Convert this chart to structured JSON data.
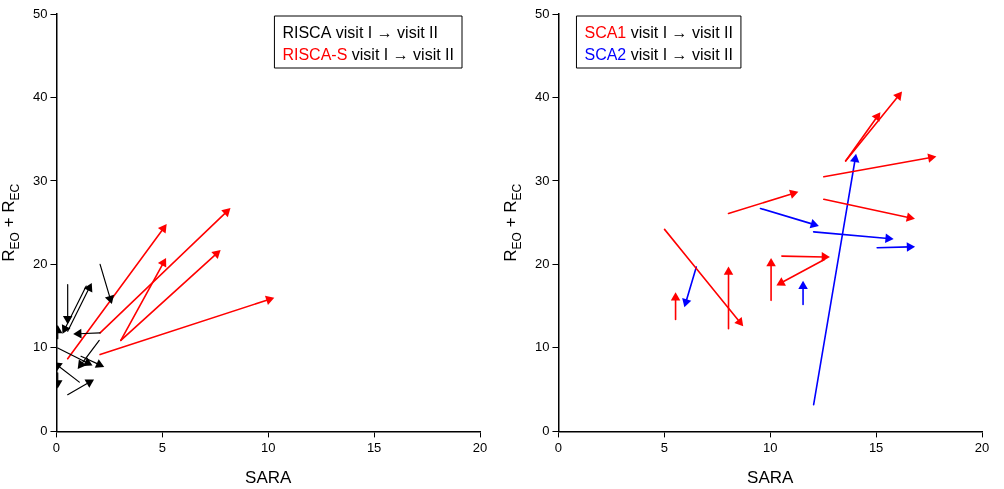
{
  "chart_data": [
    {
      "type": "line",
      "xlabel": "SARA",
      "ylabel": "R$_{EO}$ + R$_{EC}$",
      "xlim": [
        0,
        20
      ],
      "xticks": [
        0,
        5,
        10,
        15,
        20
      ],
      "ylim": [
        0,
        50
      ],
      "yticks": [
        0,
        10,
        20,
        30,
        40,
        50
      ],
      "grid": false,
      "legend": "top right",
      "marker": "triangle",
      "series": [
        {
          "name": "RISCA visit I → visit II",
          "color": "#000000",
          "x": [
            0.53,
            0.53
          ],
          "values": [
            17.6,
            13.5
          ]
        },
        {
          "color": "#000000",
          "x": [
            0.53,
            1.55
          ],
          "values": [
            12.0,
            17.2
          ]
        },
        {
          "color": "#000000",
          "x": [
            1.4,
            0.4
          ],
          "values": [
            17.4,
            12.3
          ]
        },
        {
          "color": "#000000",
          "x": [
            2.06,
            2.54
          ],
          "values": [
            20.0,
            15.9
          ]
        },
        {
          "color": "#000000",
          "x": [
            2.06,
            1.05
          ],
          "values": [
            11.8,
            11.7
          ]
        },
        {
          "color": "#000000",
          "x": [
            0.06,
            1.47
          ],
          "values": [
            10.0,
            8.2
          ]
        },
        {
          "color": "#000000",
          "x": [
            2.02,
            1.16
          ],
          "values": [
            10.9,
            8.0
          ]
        },
        {
          "color": "#000000",
          "x": [
            1.16,
            2.02
          ],
          "values": [
            9.0,
            8.0
          ]
        },
        {
          "color": "#000000",
          "x": [
            0.53,
            1.55
          ],
          "values": [
            4.4,
            5.9
          ]
        },
        {
          "color": "#000000",
          "x": [
            1.08,
            0.06
          ],
          "values": [
            5.9,
            7.9
          ]
        },
        {
          "color": "#000000",
          "x": [
            0.06,
            0.06
          ],
          "values": [
            11.1,
            12.1
          ]
        },
        {
          "color": "#000000",
          "x": [
            0.06,
            0.06
          ],
          "values": [
            7.0,
            5.8
          ]
        },
        {
          "name": "RISCA-S visit I → visit II",
          "color": "#ff0000",
          "x": [
            0.53,
            5.05
          ],
          "values": [
            8.7,
            24.3
          ]
        },
        {
          "color": "#ff0000",
          "x": [
            2.06,
            8.03
          ],
          "values": [
            11.8,
            26.3
          ]
        },
        {
          "color": "#ff0000",
          "x": [
            3.04,
            5.05
          ],
          "values": [
            10.9,
            20.2
          ]
        },
        {
          "color": "#ff0000",
          "x": [
            3.04,
            7.56
          ],
          "values": [
            10.9,
            21.3
          ]
        },
        {
          "color": "#ff0000",
          "x": [
            2.06,
            10.04
          ],
          "values": [
            9.2,
            15.8
          ]
        }
      ]
    },
    {
      "type": "line",
      "xlabel": "SARA",
      "ylabel": "R$_{EO}$ + R$_{EC}$",
      "xlim": [
        0,
        20
      ],
      "xticks": [
        0,
        5,
        10,
        15,
        20
      ],
      "ylim": [
        0,
        50
      ],
      "yticks": [
        0,
        10,
        20,
        30,
        40,
        50
      ],
      "grid": false,
      "legend": "top left",
      "marker": "triangle",
      "series": [
        {
          "name": "SCA1 visit I → visit II",
          "color": "#ff0000",
          "x": [
            13.56,
            16.06
          ],
          "values": [
            32.4,
            40.2
          ]
        },
        {
          "color": "#ff0000",
          "x": [
            13.56,
            15.05
          ],
          "values": [
            32.4,
            37.7
          ]
        },
        {
          "color": "#ff0000",
          "x": [
            12.53,
            17.59
          ],
          "values": [
            30.5,
            32.8
          ]
        },
        {
          "color": "#ff0000",
          "x": [
            12.53,
            16.58
          ],
          "values": [
            27.8,
            25.6
          ]
        },
        {
          "color": "#ff0000",
          "x": [
            8.03,
            11.08
          ],
          "values": [
            26.1,
            28.5
          ]
        },
        {
          "color": "#ff0000",
          "x": [
            5.01,
            8.56
          ],
          "values": [
            24.2,
            13.1
          ]
        },
        {
          "color": "#ff0000",
          "x": [
            5.53,
            5.53
          ],
          "values": [
            13.4,
            16.0
          ]
        },
        {
          "color": "#ff0000",
          "x": [
            8.03,
            8.03
          ],
          "values": [
            12.3,
            19.1
          ]
        },
        {
          "color": "#ff0000",
          "x": [
            10.04,
            10.04
          ],
          "values": [
            15.7,
            20.1
          ]
        },
        {
          "color": "#ff0000",
          "x": [
            10.55,
            12.56
          ],
          "values": [
            21.0,
            20.9
          ]
        },
        {
          "color": "#ff0000",
          "x": [
            12.56,
            10.52
          ],
          "values": [
            20.6,
            17.8
          ]
        },
        {
          "name": "SCA2 visit I → visit II",
          "color": "#0000ff",
          "x": [
            9.54,
            12.05
          ],
          "values": [
            26.7,
            24.8
          ]
        },
        {
          "color": "#0000ff",
          "x": [
            12.05,
            15.57
          ],
          "values": [
            23.9,
            23.1
          ]
        },
        {
          "color": "#0000ff",
          "x": [
            15.05,
            16.58
          ],
          "values": [
            22.0,
            22.1
          ]
        },
        {
          "color": "#0000ff",
          "x": [
            12.05,
            14.01
          ],
          "values": [
            3.2,
            32.6
          ]
        },
        {
          "color": "#0000ff",
          "x": [
            6.51,
            6.02
          ],
          "values": [
            19.7,
            15.5
          ]
        },
        {
          "color": "#0000ff",
          "x": [
            11.55,
            11.55
          ],
          "values": [
            15.2,
            17.4
          ]
        }
      ]
    }
  ]
}
